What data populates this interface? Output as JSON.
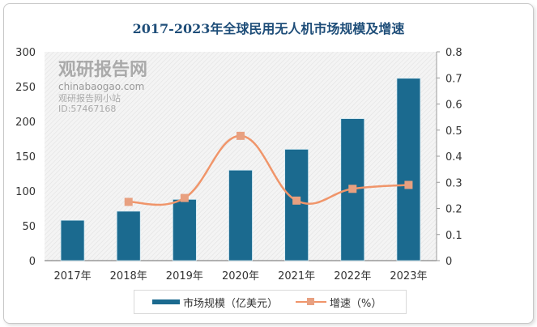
{
  "chart_data": {
    "type": "bar+line",
    "title": "2017-2023年全球民用无人机市场规模及增速",
    "categories": [
      "2017年",
      "2018年",
      "2019年",
      "2020年",
      "2021年",
      "2022年",
      "2023年"
    ],
    "series": [
      {
        "name": "市场规模（亿美元）",
        "type": "bar",
        "axis": "left",
        "color": "#1b6a8f",
        "values": [
          58,
          71,
          88,
          130,
          160,
          204,
          262
        ]
      },
      {
        "name": "增速（%）",
        "type": "line",
        "axis": "right",
        "color": "#f0956a",
        "smooth": true,
        "values": [
          null,
          0.225,
          0.24,
          0.478,
          0.23,
          0.275,
          0.29
        ]
      }
    ],
    "y_left": {
      "range": [
        0,
        300
      ],
      "ticks": [
        "0",
        "50",
        "100",
        "150",
        "200",
        "250",
        "300"
      ]
    },
    "y_right": {
      "range": [
        0,
        0.8
      ],
      "ticks": [
        "0",
        "0.1",
        "0.2",
        "0.3",
        "0.4",
        "0.5",
        "0.6",
        "0.7",
        "0.8"
      ]
    },
    "legend": "bottom",
    "grid": false
  },
  "watermark": {
    "brand": "观研报告网",
    "site": "chinabaogao.com",
    "account": "观研报告网小站",
    "id": "ID:57467168"
  }
}
